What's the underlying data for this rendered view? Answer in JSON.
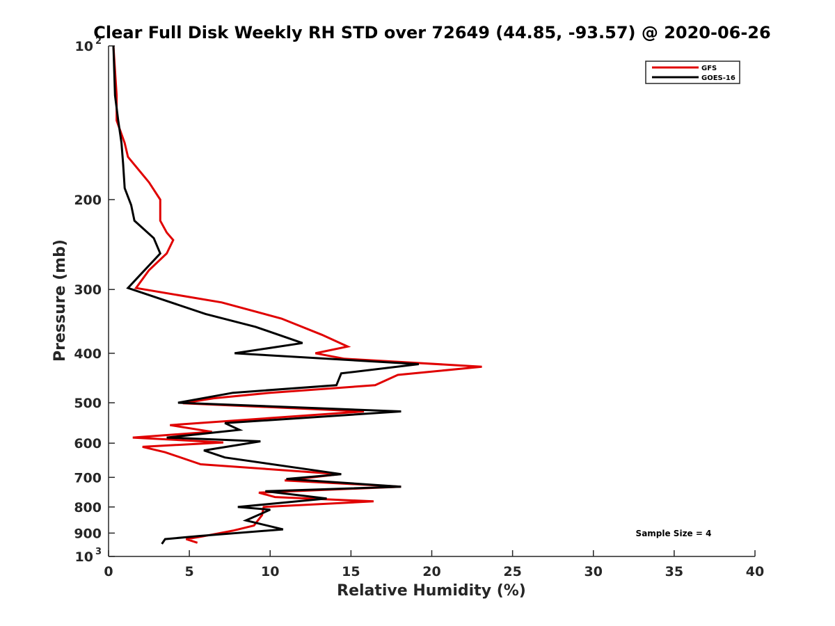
{
  "chart_data": {
    "type": "line",
    "title": "Clear Full Disk Weekly RH STD over 72649 (44.85, -93.57) @ 2020-06-26",
    "xlabel": "Relative Humidity (%)",
    "ylabel": "Pressure (mb)",
    "xlim": [
      0,
      40
    ],
    "ylim": [
      100,
      1000
    ],
    "y_scale": "log",
    "y_reversed": true,
    "grid": false,
    "legend_position": "top-right",
    "x_ticks": [
      "0",
      "5",
      "10",
      "15",
      "20",
      "25",
      "30",
      "35",
      "40"
    ],
    "y_ticks": [
      {
        "value": 100,
        "base": "10",
        "exp": "2"
      },
      {
        "value": 200,
        "label": "200"
      },
      {
        "value": 300,
        "label": "300"
      },
      {
        "value": 400,
        "label": "400"
      },
      {
        "value": 500,
        "label": "500"
      },
      {
        "value": 600,
        "label": "600"
      },
      {
        "value": 700,
        "label": "700"
      },
      {
        "value": 800,
        "label": "800"
      },
      {
        "value": 900,
        "label": "900"
      },
      {
        "value": 1000,
        "base": "10",
        "exp": "3"
      }
    ],
    "series": [
      {
        "name": "GFS",
        "color": "#e00000",
        "points": [
          [
            0.3,
            100
          ],
          [
            0.5,
            125
          ],
          [
            0.5,
            140
          ],
          [
            1.0,
            155
          ],
          [
            1.2,
            165
          ],
          [
            2.5,
            185
          ],
          [
            3.2,
            200
          ],
          [
            3.2,
            220
          ],
          [
            3.6,
            232
          ],
          [
            4.0,
            240
          ],
          [
            3.6,
            255
          ],
          [
            2.5,
            275
          ],
          [
            1.7,
            298
          ],
          [
            7.0,
            318
          ],
          [
            10.7,
            342
          ],
          [
            13.2,
            368
          ],
          [
            14.8,
            388
          ],
          [
            12.8,
            400
          ],
          [
            14.6,
            410
          ],
          [
            23.1,
            425
          ],
          [
            17.9,
            441
          ],
          [
            16.5,
            462
          ],
          [
            10.0,
            478
          ],
          [
            6.5,
            490
          ],
          [
            4.6,
            501
          ],
          [
            15.8,
            520
          ],
          [
            3.8,
            553
          ],
          [
            6.4,
            570
          ],
          [
            1.5,
            585
          ],
          [
            7.1,
            598
          ],
          [
            2.1,
            610
          ],
          [
            3.5,
            625
          ],
          [
            5.7,
            660
          ],
          [
            14.3,
            690
          ],
          [
            10.9,
            710
          ],
          [
            18.1,
            730
          ],
          [
            9.3,
            750
          ],
          [
            10.3,
            765
          ],
          [
            16.4,
            780
          ],
          [
            9.6,
            800
          ],
          [
            9.5,
            830
          ],
          [
            9.0,
            870
          ],
          [
            7.7,
            890
          ],
          [
            5.7,
            915
          ],
          [
            4.8,
            925
          ],
          [
            5.5,
            940
          ]
        ]
      },
      {
        "name": "GOES-16",
        "color": "#000000",
        "points": [
          [
            0.3,
            100
          ],
          [
            0.4,
            125
          ],
          [
            0.6,
            140
          ],
          [
            0.8,
            155
          ],
          [
            0.9,
            170
          ],
          [
            1.0,
            190
          ],
          [
            1.4,
            205
          ],
          [
            1.6,
            220
          ],
          [
            2.8,
            238
          ],
          [
            3.2,
            255
          ],
          [
            2.0,
            280
          ],
          [
            1.2,
            298
          ],
          [
            6.0,
            335
          ],
          [
            9.1,
            355
          ],
          [
            12.0,
            382
          ],
          [
            7.8,
            400
          ],
          [
            19.2,
            420
          ],
          [
            14.4,
            438
          ],
          [
            14.1,
            462
          ],
          [
            7.7,
            478
          ],
          [
            4.3,
            500
          ],
          [
            18.1,
            520
          ],
          [
            7.2,
            548
          ],
          [
            8.1,
            565
          ],
          [
            3.6,
            585
          ],
          [
            9.4,
            595
          ],
          [
            5.9,
            620
          ],
          [
            7.2,
            640
          ],
          [
            14.4,
            690
          ],
          [
            11.0,
            705
          ],
          [
            18.1,
            730
          ],
          [
            9.7,
            745
          ],
          [
            13.5,
            770
          ],
          [
            8.0,
            800
          ],
          [
            10.0,
            810
          ],
          [
            8.5,
            850
          ],
          [
            10.8,
            885
          ],
          [
            5.6,
            912
          ],
          [
            3.5,
            925
          ],
          [
            3.3,
            945
          ]
        ]
      }
    ],
    "annotations": [
      "Sample Size = 4"
    ]
  }
}
